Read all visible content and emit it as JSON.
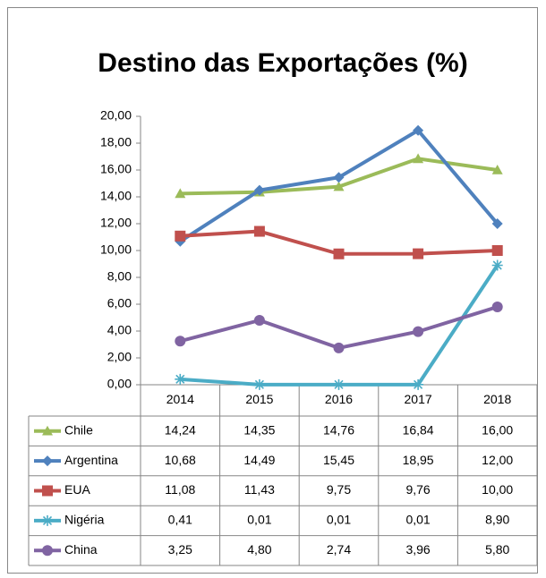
{
  "chart_data": {
    "type": "line",
    "title": "Destino das Exportações (%)",
    "categories": [
      "2014",
      "2015",
      "2016",
      "2017",
      "2018"
    ],
    "series": [
      {
        "name": "Chile",
        "color": "#9bbb59",
        "marker": "triangle",
        "values": [
          14.24,
          14.35,
          14.76,
          16.84,
          16.0
        ],
        "value_labels": [
          "14,24",
          "14,35",
          "14,76",
          "16,84",
          "16,00"
        ]
      },
      {
        "name": "Argentina",
        "color": "#4f81bd",
        "marker": "diamond",
        "values": [
          10.68,
          14.49,
          15.45,
          18.95,
          12.0
        ],
        "value_labels": [
          "10,68",
          "14,49",
          "15,45",
          "18,95",
          "12,00"
        ]
      },
      {
        "name": "EUA",
        "color": "#c0504d",
        "marker": "square",
        "values": [
          11.08,
          11.43,
          9.75,
          9.76,
          10.0
        ],
        "value_labels": [
          "11,08",
          "11,43",
          "9,75",
          "9,76",
          "10,00"
        ]
      },
      {
        "name": "Nigéria",
        "color": "#4bacc6",
        "marker": "star",
        "values": [
          0.41,
          0.01,
          0.01,
          0.01,
          8.9
        ],
        "value_labels": [
          "0,41",
          "0,01",
          "0,01",
          "0,01",
          "8,90"
        ]
      },
      {
        "name": "China",
        "color": "#8064a2",
        "marker": "circle",
        "values": [
          3.25,
          4.8,
          2.74,
          3.96,
          5.8
        ],
        "value_labels": [
          "3,25",
          "4,80",
          "2,74",
          "3,96",
          "5,80"
        ]
      }
    ],
    "ylim": [
      0,
      20
    ],
    "yticks": [
      {
        "value": 0,
        "label": "0,00"
      },
      {
        "value": 2,
        "label": "2,00"
      },
      {
        "value": 4,
        "label": "4,00"
      },
      {
        "value": 6,
        "label": "6,00"
      },
      {
        "value": 8,
        "label": "8,00"
      },
      {
        "value": 10,
        "label": "10,00"
      },
      {
        "value": 12,
        "label": "12,00"
      },
      {
        "value": 14,
        "label": "14,00"
      },
      {
        "value": 16,
        "label": "16,00"
      },
      {
        "value": 18,
        "label": "18,00"
      },
      {
        "value": 20,
        "label": "20,00"
      }
    ],
    "grid": false
  }
}
